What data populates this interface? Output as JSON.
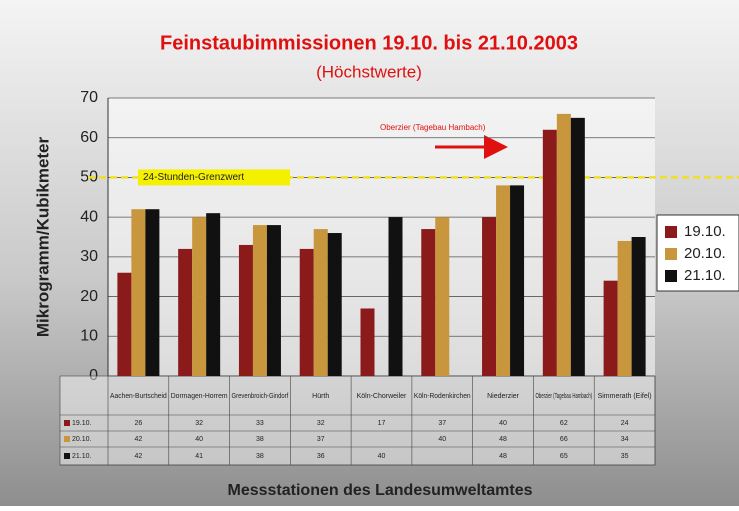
{
  "chart_data": {
    "type": "bar",
    "title": "Feinstaubimmissionen 19.10. bis 21.10.2003",
    "subtitle": "(Höchstwerte)",
    "y_label": "Mikrogramm/Kubikmeter",
    "x_label": "Messstationen des Landesumweltamtes",
    "categories": [
      "Aachen-Burtscheid",
      "Dormagen-Horrem",
      "Grevenbroich-Gindorf",
      "Hürth",
      "Köln-Chorweiler",
      "Köln-Rodenkirchen",
      "Niederzier",
      "Oberzier (Tagebau Hambach)",
      "Simmerath (Eifel)"
    ],
    "series": [
      {
        "name": "19.10.",
        "color": "#8b1a1a",
        "values": [
          26,
          32,
          33,
          32,
          17,
          37,
          40,
          62,
          24
        ]
      },
      {
        "name": "20.10.",
        "color": "#c8963c",
        "values": [
          42,
          40,
          38,
          37,
          null,
          40,
          48,
          66,
          34
        ]
      },
      {
        "name": "21.10.",
        "color": "#111111",
        "values": [
          42,
          41,
          38,
          36,
          40,
          null,
          48,
          65,
          35
        ]
      }
    ],
    "ylim": [
      0,
      70
    ],
    "yticks": [
      0,
      10,
      20,
      30,
      40,
      50,
      60,
      70
    ],
    "grid": true,
    "threshold": {
      "value": 50,
      "label": "24-Stunden-Grenzwert"
    },
    "annotation": "Oberzier (Tagebau Hambach)",
    "legend": "right"
  }
}
